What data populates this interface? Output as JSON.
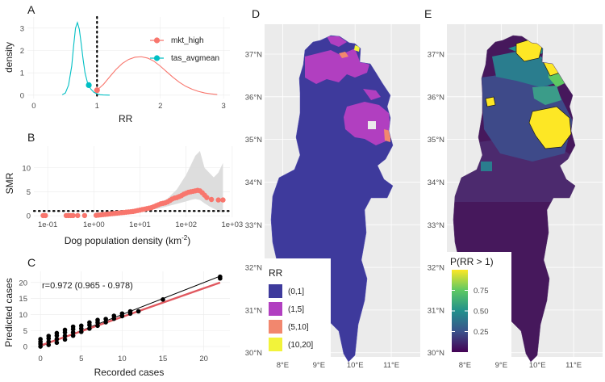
{
  "chart_data": [
    {
      "panel": "A",
      "type": "line",
      "title": "",
      "xlabel": "RR",
      "ylabel": "density",
      "xlim": [
        -0.1,
        3.1
      ],
      "ylim": [
        -0.15,
        3.5
      ],
      "xticks": [
        "0",
        "1",
        "2",
        "3"
      ],
      "yticks": [
        "0",
        "1",
        "2",
        "3"
      ],
      "reference_line_x": 1,
      "series": [
        {
          "name": "mkt_high",
          "color": "#F8766D",
          "x": [
            1.0,
            1.1,
            1.2,
            1.3,
            1.4,
            1.5,
            1.6,
            1.7,
            1.8,
            1.9,
            2.0,
            2.1,
            2.2,
            2.3,
            2.4,
            2.5,
            2.6,
            2.7,
            2.8,
            2.9
          ],
          "y": [
            0.22,
            0.48,
            0.82,
            1.15,
            1.42,
            1.6,
            1.7,
            1.72,
            1.66,
            1.52,
            1.3,
            1.05,
            0.8,
            0.58,
            0.4,
            0.27,
            0.17,
            0.1,
            0.06,
            0.03
          ],
          "marker": {
            "x": 1.0,
            "y": 0.22
          }
        },
        {
          "name": "tas_avgmean",
          "color": "#00BFC4",
          "x": [
            0.45,
            0.5,
            0.55,
            0.6,
            0.63,
            0.66,
            0.69,
            0.72,
            0.75,
            0.78,
            0.81,
            0.85,
            0.9,
            0.95,
            1.0,
            1.05,
            1.1,
            1.15,
            1.2
          ],
          "y": [
            0.02,
            0.1,
            0.45,
            1.3,
            2.2,
            3.0,
            3.25,
            2.95,
            2.3,
            1.6,
            1.0,
            0.55,
            0.28,
            0.13,
            0.06,
            0.02,
            0.01,
            0.005,
            0.0
          ],
          "marker": {
            "x": 0.87,
            "y": 0.45
          }
        }
      ],
      "legend": [
        "mkt_high",
        "tas_avgmean"
      ]
    },
    {
      "panel": "B",
      "type": "scatter",
      "xlabel": "Dog population density (km",
      "xlabel_sup": "-2",
      "xlabel_end": ")",
      "ylabel": "SMR",
      "xscale": "log10",
      "xlim_log10": [
        -1.3,
        2.95
      ],
      "ylim": [
        -0.3,
        14.5
      ],
      "xticks": [
        "1e-01",
        "1e+00",
        "1e+01",
        "1e+02",
        "1e+03"
      ],
      "yticks": [
        "0",
        "5",
        "10"
      ],
      "reference_line_y": 1,
      "series": [
        {
          "name": "SMR",
          "color": "#F8766D",
          "log10_x": [
            -1.1,
            -1.05,
            -0.6,
            -0.55,
            -0.5,
            -0.45,
            -0.35,
            -0.2,
            0.05,
            0.1,
            0.15,
            0.2,
            0.25,
            0.3,
            0.35,
            0.4,
            0.45,
            0.5,
            0.55,
            0.6,
            0.65,
            0.7,
            0.75,
            0.8,
            0.85,
            0.9,
            0.95,
            1.0,
            1.05,
            1.1,
            1.15,
            1.2,
            1.25,
            1.3,
            1.35,
            1.4,
            1.45,
            1.5,
            1.55,
            1.6,
            1.65,
            1.7,
            1.75,
            1.8,
            1.85,
            1.9,
            1.95,
            2.0,
            2.05,
            2.1,
            2.15,
            2.2,
            2.25,
            2.3,
            2.35,
            2.4,
            2.45,
            2.55,
            2.7,
            2.8
          ],
          "y": [
            0.05,
            0.05,
            0.05,
            0.05,
            0.05,
            0.05,
            0.05,
            0.05,
            0.1,
            0.15,
            0.2,
            0.25,
            0.3,
            0.35,
            0.4,
            0.45,
            0.5,
            0.55,
            0.6,
            0.65,
            0.7,
            0.75,
            0.8,
            0.85,
            0.9,
            1.0,
            1.1,
            1.2,
            1.3,
            1.4,
            1.5,
            1.6,
            1.7,
            1.9,
            2.1,
            2.3,
            2.5,
            2.6,
            2.7,
            2.9,
            3.2,
            3.5,
            3.7,
            3.8,
            4.0,
            4.2,
            4.5,
            4.7,
            4.9,
            5.0,
            5.1,
            5.2,
            5.3,
            5.2,
            4.8,
            4.3,
            3.8,
            3.4,
            3.3,
            3.3
          ]
        },
        {
          "name": "ribbon",
          "color": "#d9d9d9",
          "log10_x": [
            1.0,
            1.2,
            1.4,
            1.6,
            1.8,
            2.0,
            2.1,
            2.2,
            2.3,
            2.4,
            2.5,
            2.6,
            2.7,
            2.8
          ],
          "upper": [
            1.5,
            2.0,
            2.6,
            3.6,
            5.5,
            8.5,
            10.5,
            12.5,
            13.5,
            10.0,
            9.0,
            8.0,
            9.0,
            11.0
          ],
          "lower": [
            0.9,
            1.2,
            1.5,
            2.0,
            2.5,
            3.0,
            3.3,
            3.5,
            3.3,
            2.6,
            2.0,
            1.5,
            1.0,
            0.6
          ]
        }
      ]
    },
    {
      "panel": "C",
      "type": "scatter",
      "xlabel": "Recorded cases",
      "ylabel": "Predicted cases",
      "xlim": [
        -1.2,
        23.2
      ],
      "ylim": [
        -1.5,
        23.5
      ],
      "xticks": [
        "0",
        "5",
        "10",
        "15",
        "20"
      ],
      "yticks": [
        "0",
        "5",
        "10",
        "15",
        "20"
      ],
      "annotation": "r=0.972 (0.965 - 0.978)",
      "identity_line": {
        "from": [
          0,
          0
        ],
        "to": [
          22,
          22
        ],
        "color": "#000000"
      },
      "fit_line": {
        "from": [
          0,
          0.3
        ],
        "to": [
          22,
          20
        ],
        "color": "#E0585F"
      },
      "points": {
        "x": [
          0,
          0,
          0,
          0,
          1,
          1,
          1,
          1,
          2,
          2,
          2,
          2,
          3,
          3,
          3,
          3,
          4,
          4,
          4,
          4,
          5,
          5,
          5,
          6,
          6,
          6,
          7,
          7,
          7,
          8,
          8,
          9,
          9,
          10,
          10,
          11,
          11,
          12,
          15,
          22,
          22
        ],
        "y": [
          0,
          0.8,
          1.5,
          2.3,
          0.5,
          1.5,
          2.5,
          3.3,
          1.2,
          2.3,
          3.4,
          4.2,
          2.2,
          3.3,
          4.4,
          5.2,
          3.4,
          4.4,
          5.4,
          6.2,
          4.6,
          5.6,
          6.5,
          5.6,
          6.7,
          7.5,
          6.5,
          7.5,
          8.3,
          7.6,
          8.6,
          8.7,
          9.6,
          9.5,
          10.3,
          10.3,
          11.0,
          11.0,
          14.7,
          21.3,
          21.8
        ]
      }
    },
    {
      "panel": "D",
      "type": "map",
      "lon_ticks": [
        "8°E",
        "9°E",
        "10°E",
        "11°E"
      ],
      "lat_ticks": [
        "30°N",
        "31°N",
        "32°N",
        "33°N",
        "34°N",
        "35°N",
        "36°N",
        "37°N"
      ],
      "legend_title": "RR",
      "legend_items": [
        {
          "label": "(0,1]",
          "color": "#3E3A9C"
        },
        {
          "label": "(1,5]",
          "color": "#B13FC0"
        },
        {
          "label": "(5,10]",
          "color": "#F2876E"
        },
        {
          "label": "(10,20]",
          "color": "#F2F33A"
        }
      ]
    },
    {
      "panel": "E",
      "type": "map",
      "lon_ticks": [
        "8°E",
        "9°E",
        "10°E",
        "11°E"
      ],
      "lat_ticks": [
        "30°N",
        "31°N",
        "32°N",
        "33°N",
        "34°N",
        "35°N",
        "36°N",
        "37°N"
      ],
      "legend_title": "P(RR > 1)",
      "colorbar_ticks": [
        "0.25",
        "0.50",
        "0.75"
      ],
      "colorbar_values": [
        0.25,
        0.5,
        0.75
      ],
      "colors": [
        "#440154",
        "#3B528B",
        "#21908C",
        "#5DC863",
        "#FDE725"
      ]
    }
  ]
}
